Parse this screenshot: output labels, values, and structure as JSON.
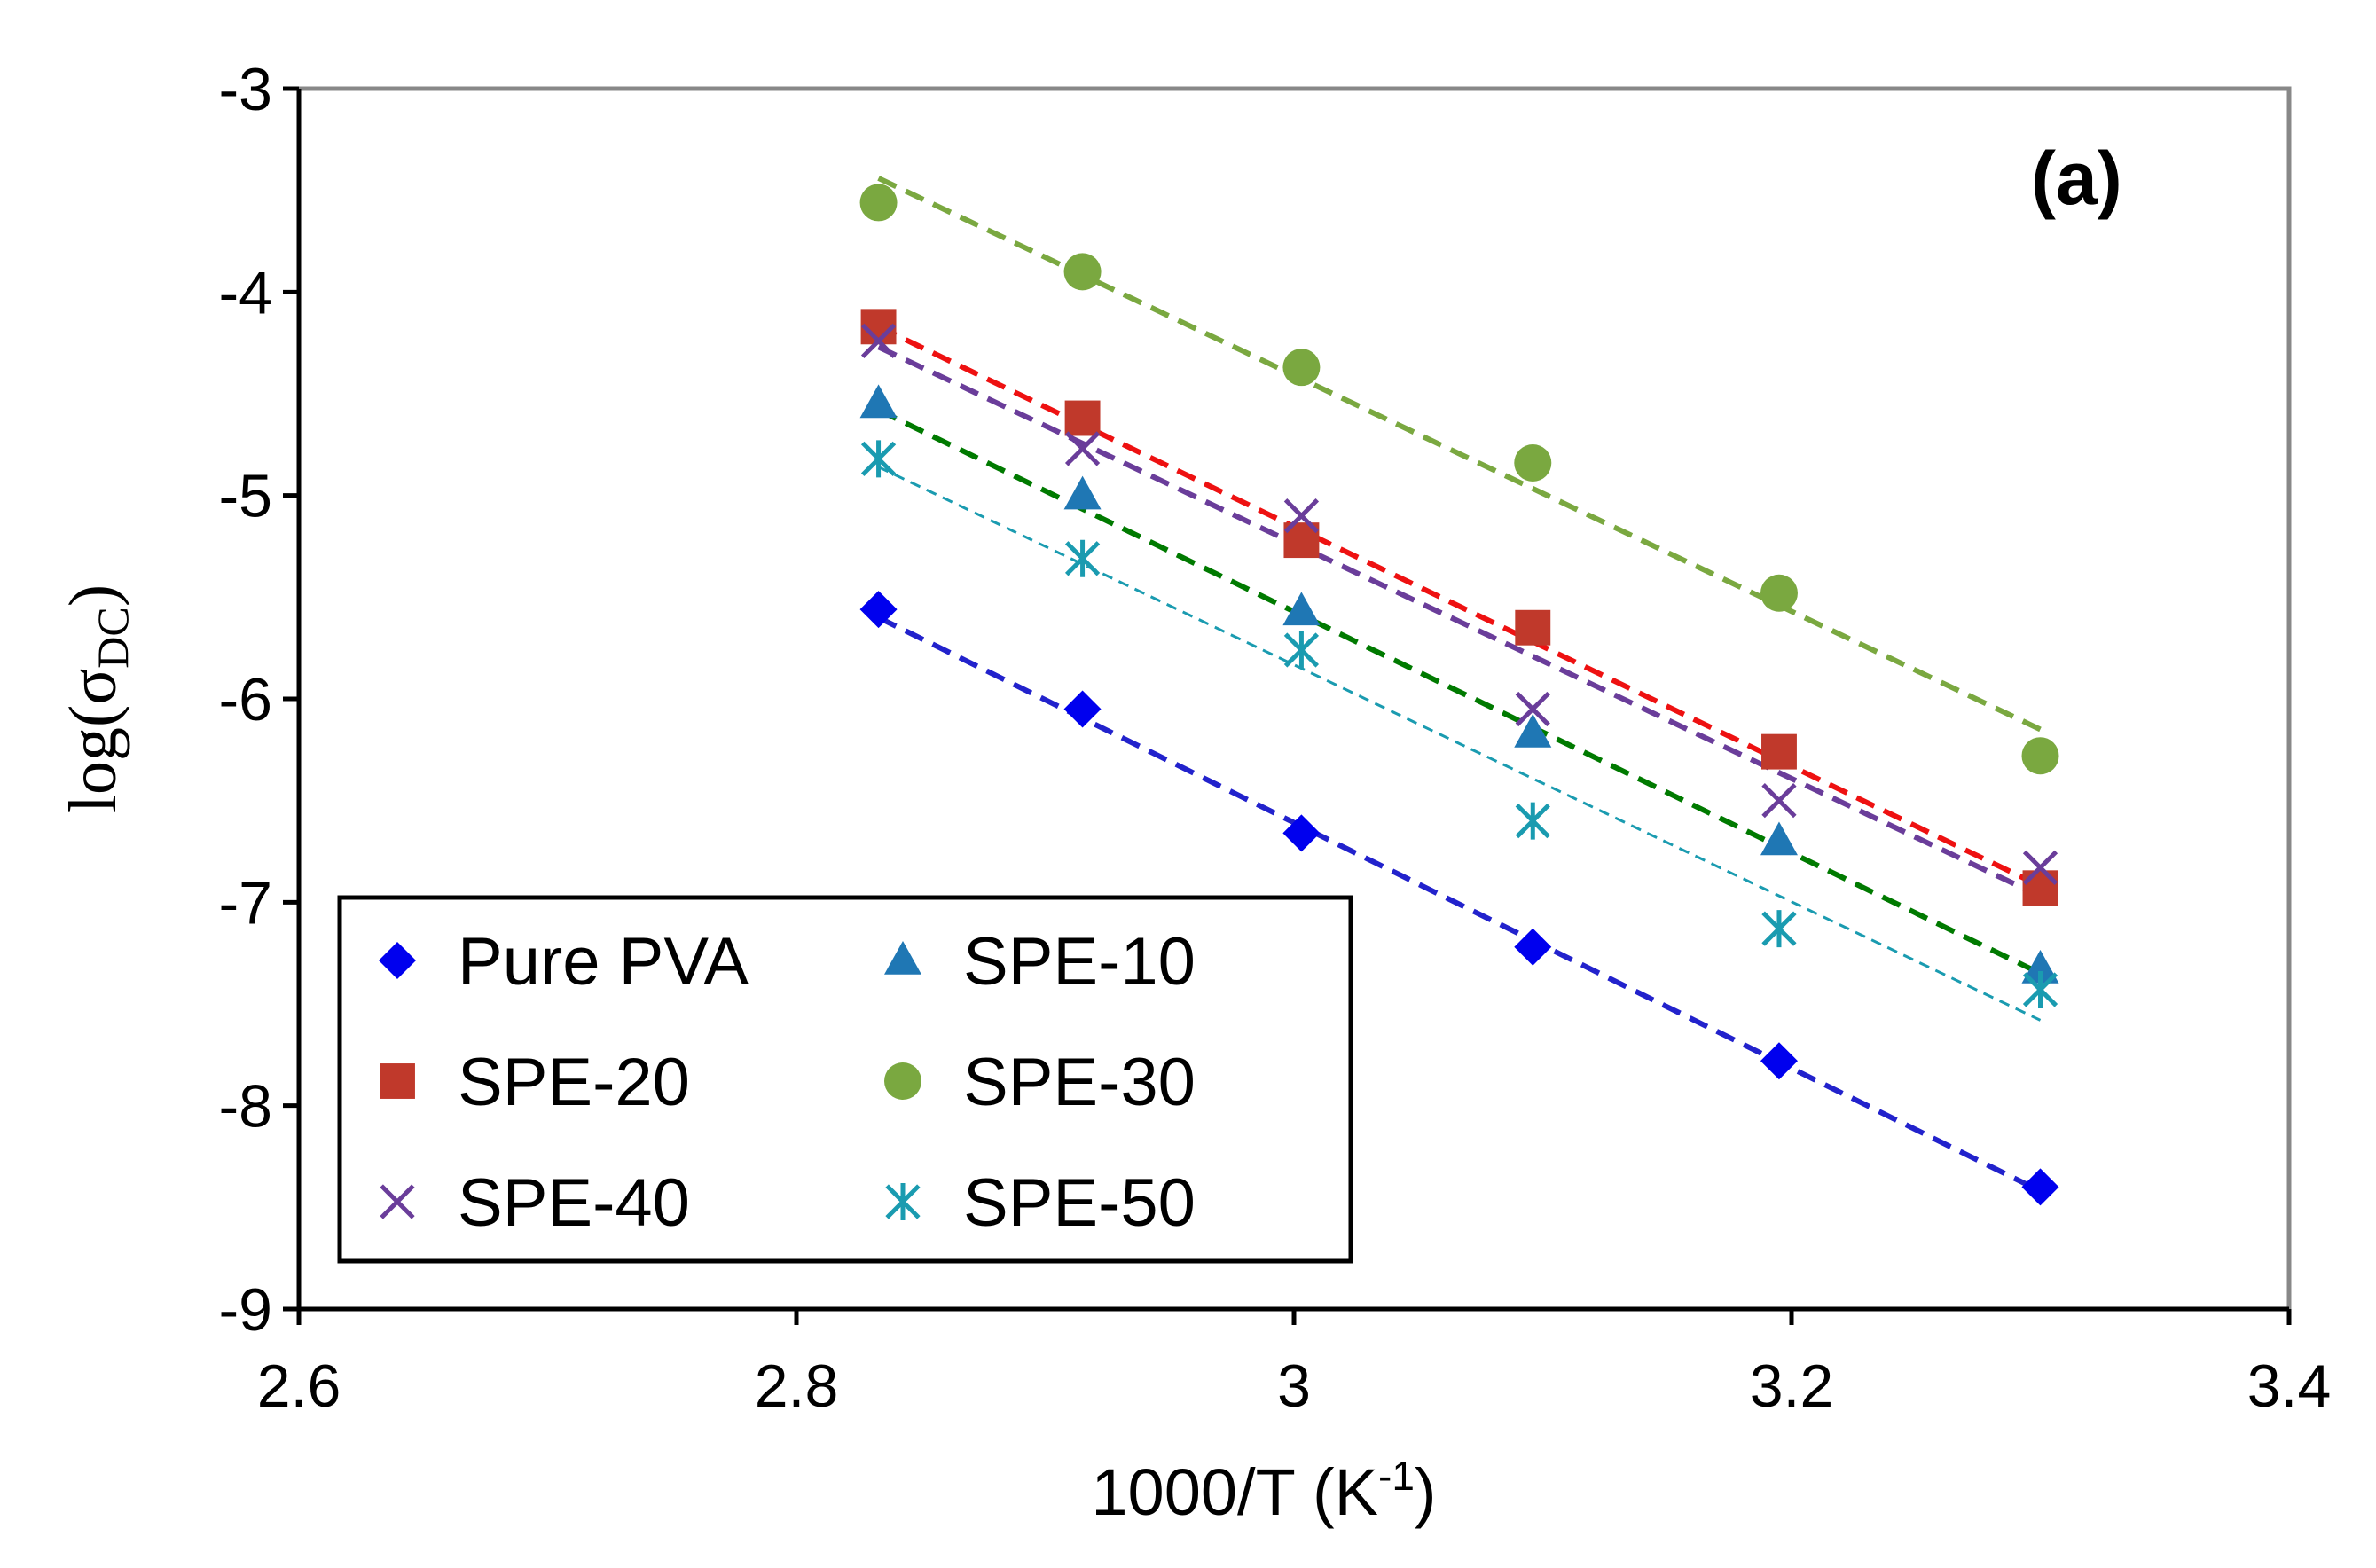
{
  "chart_data": {
    "type": "scatter",
    "panel_label": "(a)",
    "xlabel": {
      "main": "1000/T (K",
      "sup": "-1",
      "end": ")"
    },
    "ylabel": {
      "main": "log(σ",
      "sub": "DC",
      "end": ")"
    },
    "xlim": [
      2.6,
      3.4
    ],
    "ylim": [
      -9,
      -3
    ],
    "xticks": [
      "2.6",
      "2.8",
      "3",
      "3.2",
      "3.4"
    ],
    "yticks": [
      "-9",
      "-8",
      "-7",
      "-6",
      "-5",
      "-4",
      "-3"
    ],
    "x": [
      2.833,
      2.915,
      3.003,
      3.096,
      3.195,
      3.3
    ],
    "series": [
      {
        "name": "Pure PVA",
        "marker": "diamond",
        "color": "#0000ee",
        "line_color": "#2222cc",
        "values": [
          -5.56,
          -6.05,
          -6.66,
          -7.22,
          -7.78,
          -8.4
        ],
        "fit": [
          -5.6,
          -8.42
        ]
      },
      {
        "name": "SPE-10",
        "marker": "triangle",
        "color": "#1f77b4",
        "line_color": "#007a00",
        "values": [
          -4.55,
          -5.0,
          -5.57,
          -6.17,
          -6.7,
          -7.33
        ],
        "fit": [
          -4.58,
          -7.35
        ]
      },
      {
        "name": "SPE-20",
        "marker": "square",
        "color": "#c0392b",
        "line_color": "#ee1111",
        "values": [
          -4.17,
          -4.62,
          -5.22,
          -5.65,
          -6.26,
          -6.93
        ],
        "fit": [
          -4.17,
          -6.92
        ]
      },
      {
        "name": "SPE-30",
        "marker": "circle",
        "color": "#7aa840",
        "line_color": "#7aa840",
        "values": [
          -3.56,
          -3.9,
          -4.37,
          -4.84,
          -5.48,
          -6.28
        ],
        "fit": [
          -3.44,
          -6.15
        ]
      },
      {
        "name": "SPE-40",
        "marker": "x",
        "color": "#6a3d9a",
        "line_color": "#6a3d9a",
        "values": [
          -4.24,
          -4.77,
          -5.1,
          -6.05,
          -6.5,
          -6.83
        ],
        "fit": [
          -4.27,
          -6.97
        ]
      },
      {
        "name": "SPE-50",
        "marker": "star",
        "color": "#1a9bb0",
        "line_color": "#1a9bb0",
        "values": [
          -4.82,
          -5.31,
          -5.76,
          -6.6,
          -7.13,
          -7.43
        ],
        "fit": [
          -4.86,
          -7.58
        ]
      }
    ],
    "legend": {
      "placement": "bottom-left",
      "columns": 2,
      "order": [
        "Pure PVA",
        "SPE-10",
        "SPE-20",
        "SPE-30",
        "SPE-40",
        "SPE-50"
      ]
    }
  }
}
